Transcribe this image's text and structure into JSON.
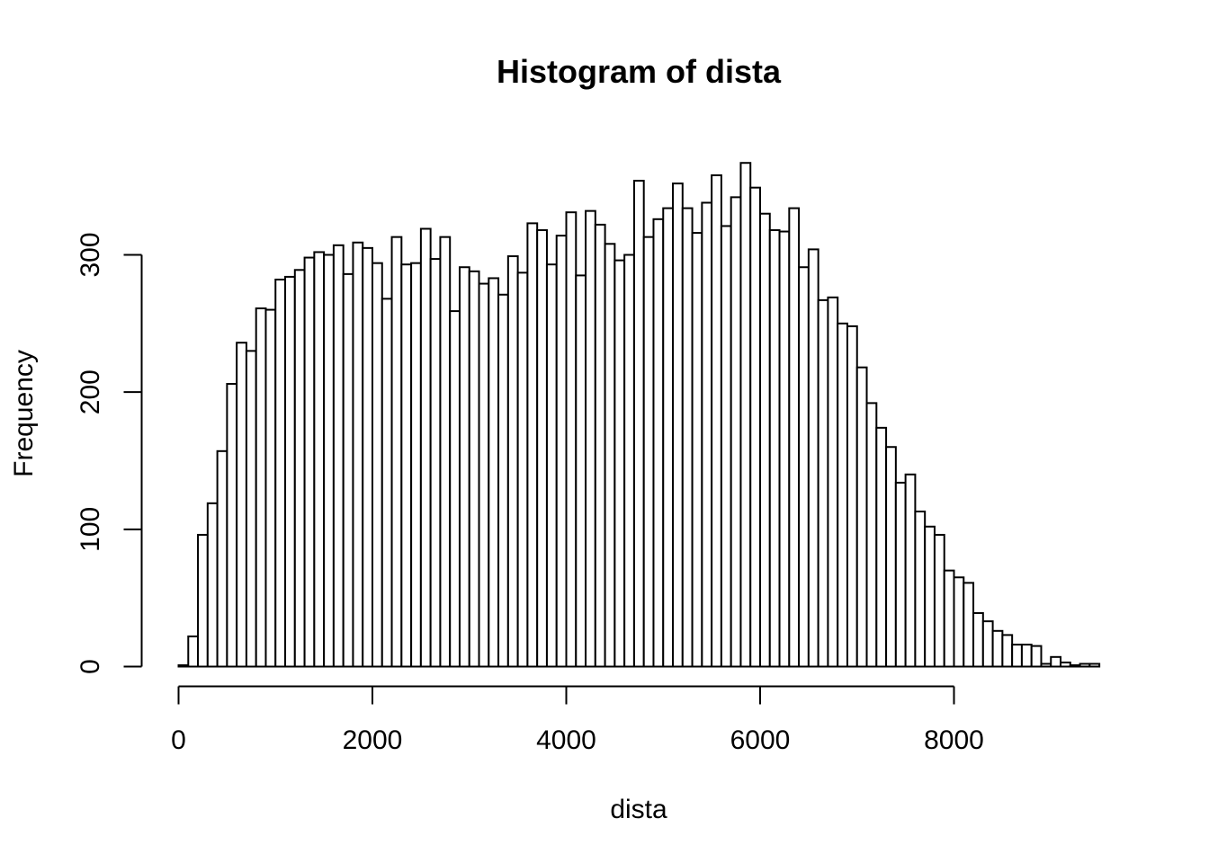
{
  "chart_data": {
    "type": "bar",
    "title": "Histogram of dista",
    "xlabel": "dista",
    "ylabel": "Frequency",
    "bin_width": 100,
    "xlim": [
      0,
      9500
    ],
    "ylim": [
      0,
      368
    ],
    "x_ticks": [
      0,
      2000,
      4000,
      6000,
      8000
    ],
    "y_ticks": [
      0,
      100,
      200,
      300
    ],
    "bins_start": [
      0,
      100,
      200,
      300,
      400,
      500,
      600,
      700,
      800,
      900,
      1000,
      1100,
      1200,
      1300,
      1400,
      1500,
      1600,
      1700,
      1800,
      1900,
      2000,
      2100,
      2200,
      2300,
      2400,
      2500,
      2600,
      2700,
      2800,
      2900,
      3000,
      3100,
      3200,
      3300,
      3400,
      3500,
      3600,
      3700,
      3800,
      3900,
      4000,
      4100,
      4200,
      4300,
      4400,
      4500,
      4600,
      4700,
      4800,
      4900,
      5000,
      5100,
      5200,
      5300,
      5400,
      5500,
      5600,
      5700,
      5800,
      5900,
      6000,
      6100,
      6200,
      6300,
      6400,
      6500,
      6600,
      6700,
      6800,
      6900,
      7000,
      7100,
      7200,
      7300,
      7400,
      7500,
      7600,
      7700,
      7800,
      7900,
      8000,
      8100,
      8200,
      8300,
      8400,
      8500,
      8600,
      8700,
      8800,
      8900,
      9000,
      9100,
      9200,
      9300,
      9400
    ],
    "values": [
      1,
      22,
      96,
      119,
      157,
      206,
      236,
      230,
      261,
      260,
      282,
      284,
      289,
      298,
      302,
      300,
      307,
      286,
      309,
      305,
      294,
      268,
      313,
      293,
      294,
      319,
      297,
      313,
      259,
      291,
      288,
      279,
      283,
      271,
      299,
      287,
      323,
      318,
      293,
      314,
      331,
      285,
      332,
      322,
      308,
      296,
      300,
      354,
      313,
      326,
      334,
      352,
      334,
      316,
      338,
      358,
      321,
      342,
      367,
      349,
      330,
      318,
      317,
      334,
      291,
      304,
      267,
      269,
      250,
      248,
      218,
      192,
      174,
      160,
      134,
      140,
      113,
      102,
      96,
      70,
      65,
      61,
      39,
      33,
      26,
      23,
      16,
      16,
      15,
      2,
      7,
      3,
      1,
      2,
      2
    ]
  }
}
